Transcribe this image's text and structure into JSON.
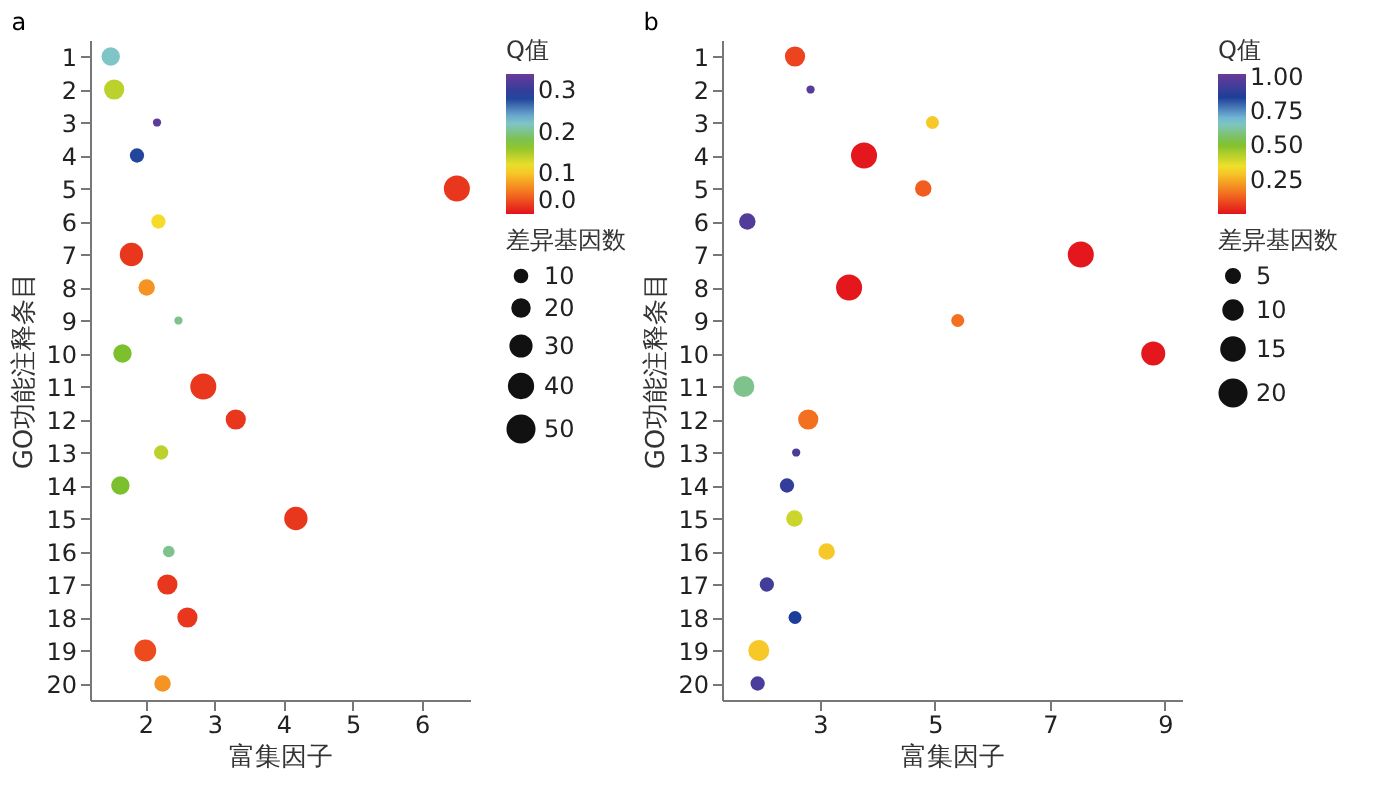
{
  "chart_data": [
    {
      "type": "bubble",
      "title": "a",
      "orientation": "horizontal",
      "xlabel": "富集因子",
      "ylabel": "GO功能注释条目",
      "categories": [
        "1",
        "2",
        "3",
        "4",
        "5",
        "6",
        "7",
        "8",
        "9",
        "10",
        "11",
        "12",
        "13",
        "14",
        "15",
        "16",
        "17",
        "18",
        "19",
        "20"
      ],
      "values": [
        1.5,
        1.55,
        2.17,
        1.88,
        6.51,
        2.19,
        1.8,
        2.02,
        2.48,
        1.67,
        2.84,
        3.31,
        2.23,
        1.64,
        4.18,
        2.34,
        2.32,
        2.61,
        2.0,
        2.25
      ],
      "sizes": [
        25,
        30,
        5,
        15,
        50,
        15,
        40,
        20,
        5,
        25,
        50,
        30,
        15,
        25,
        40,
        10,
        30,
        30,
        35,
        20
      ],
      "cvalues": [
        0.22,
        0.14,
        0.33,
        0.28,
        0.02,
        0.11,
        0.02,
        0.07,
        0.2,
        0.17,
        0.02,
        0.02,
        0.14,
        0.17,
        0.02,
        0.2,
        0.02,
        0.02,
        0.03,
        0.07
      ],
      "clabel": "Q值",
      "clim": [
        0,
        0.34
      ],
      "cticks": [
        {
          "value": 0,
          "label": "0.0"
        },
        {
          "value": 0.1,
          "label": "0.1"
        },
        {
          "value": 0.2,
          "label": "0.2"
        },
        {
          "value": 0.3,
          "label": "0.3"
        }
      ],
      "legend_title": "差异基因数",
      "size_legend": [
        10,
        20,
        30,
        40,
        50
      ],
      "xlim": [
        1.2,
        6.7
      ],
      "xticks": [
        2,
        3,
        4,
        5,
        6
      ],
      "grid": false
    },
    {
      "type": "bubble",
      "title": "b",
      "orientation": "horizontal",
      "xlabel": "富集因子",
      "ylabel": "GO功能注释条目",
      "categories": [
        "1",
        "2",
        "3",
        "4",
        "5",
        "6",
        "7",
        "8",
        "9",
        "10",
        "11",
        "12",
        "13",
        "14",
        "15",
        "16",
        "17",
        "18",
        "19",
        "20"
      ],
      "values": [
        2.57,
        2.84,
        4.96,
        3.77,
        4.8,
        1.74,
        7.54,
        3.51,
        5.4,
        8.8,
        1.68,
        2.8,
        2.59,
        2.43,
        2.56,
        3.12,
        2.08,
        2.57,
        1.94,
        1.92
      ],
      "sizes": [
        12,
        2,
        5,
        20,
        8,
        8,
        20,
        20,
        5,
        17,
        13,
        12,
        2,
        6,
        8,
        8,
        6,
        5,
        13,
        6
      ],
      "cvalues": [
        0.08,
        0.98,
        0.3,
        0.01,
        0.12,
        0.97,
        0.01,
        0.01,
        0.15,
        0.01,
        0.6,
        0.15,
        0.95,
        0.9,
        0.4,
        0.3,
        0.93,
        0.85,
        0.3,
        0.95
      ],
      "clabel": "Q值",
      "clim": [
        0,
        1.02
      ],
      "cticks": [
        {
          "value": 0.25,
          "label": "0.25"
        },
        {
          "value": 0.5,
          "label": "0.50"
        },
        {
          "value": 0.75,
          "label": "0.75"
        },
        {
          "value": 1,
          "label": "1.00"
        }
      ],
      "legend_title": "差异基因数",
      "size_legend": [
        5,
        10,
        15,
        20
      ],
      "xlim": [
        1.3,
        9.3
      ],
      "xticks": [
        3,
        5,
        7,
        9
      ],
      "grid": false
    }
  ]
}
